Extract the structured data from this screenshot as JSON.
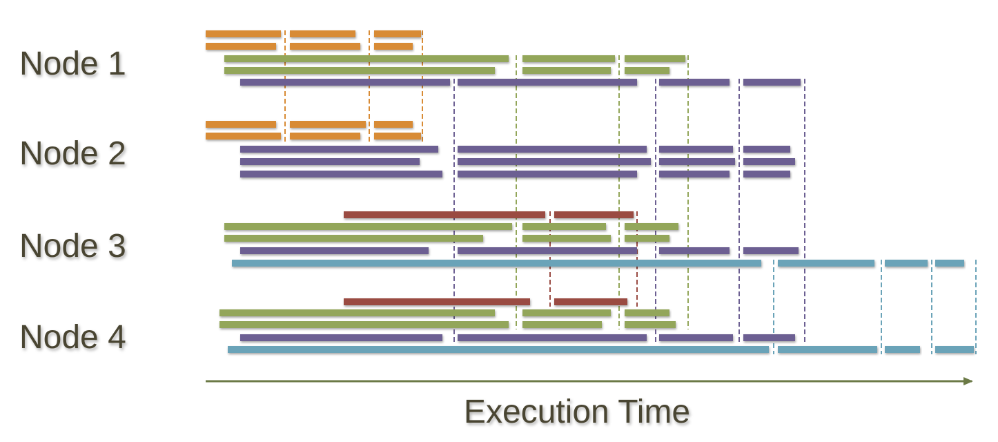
{
  "nodes": [
    {
      "label": "Node 1"
    },
    {
      "label": "Node 2"
    },
    {
      "label": "Node 3"
    },
    {
      "label": "Node 4"
    }
  ],
  "axis": {
    "label": "Execution Time",
    "color": "#6b7a46"
  },
  "colors": {
    "orange": "#d88b35",
    "green": "#93a65a",
    "purple": "#6c5f92",
    "red": "#9a4b43",
    "blue": "#6aa3b8",
    "text": "#4a4433"
  }
}
